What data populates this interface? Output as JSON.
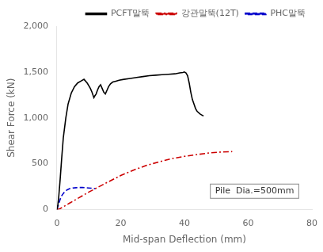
{
  "chart_data": {
    "type": "line",
    "xlabel": "Mid-span Deflection (mm)",
    "ylabel": "Shear Force (kN)",
    "xlim": [
      0,
      80
    ],
    "ylim": [
      0,
      2000
    ],
    "xticks": [
      0,
      20,
      40,
      60,
      80
    ],
    "yticks": [
      0,
      500,
      {
        "value": 1000,
        "label": "1,000"
      },
      {
        "value": 1500,
        "label": "1,500"
      },
      {
        "value": 2000,
        "label": "2,000"
      }
    ],
    "annotation": "Pile  Dia.=500mm",
    "grid": false,
    "legend": "upper right",
    "series": [
      {
        "name": "PCFT말뚝",
        "color": "#000000",
        "line_style": "solid",
        "x": [
          0.0,
          0.3,
          0.6,
          1.0,
          1.5,
          2.0,
          2.8,
          3.5,
          4.5,
          5.5,
          6.5,
          7.5,
          8.5,
          9.5,
          10.0,
          10.5,
          11.0,
          11.3,
          11.6,
          11.9,
          12.3,
          12.7,
          13.2,
          13.7,
          14.2,
          14.7,
          15.2,
          15.7,
          16.2,
          16.8,
          17.5,
          18.5,
          19.5,
          21.0,
          23.0,
          25.0,
          27.0,
          29.0,
          31.0,
          33.0,
          35.0,
          37.0,
          38.5,
          39.5,
          40.0,
          40.5,
          41.0,
          41.5,
          42.0,
          42.5,
          43.0,
          43.5,
          44.0,
          45.0,
          46.0
        ],
        "values": [
          0,
          50,
          150,
          320,
          560,
          780,
          1000,
          1150,
          1270,
          1340,
          1380,
          1400,
          1420,
          1380,
          1350,
          1320,
          1280,
          1250,
          1220,
          1240,
          1260,
          1300,
          1340,
          1360,
          1320,
          1280,
          1260,
          1300,
          1340,
          1370,
          1390,
          1400,
          1410,
          1420,
          1430,
          1440,
          1450,
          1460,
          1465,
          1470,
          1475,
          1480,
          1490,
          1495,
          1500,
          1490,
          1460,
          1380,
          1280,
          1200,
          1150,
          1100,
          1070,
          1040,
          1020
        ]
      },
      {
        "name": "강관말뚝(12T)",
        "color": "#cc0000",
        "line_style": "dashdot",
        "x": [
          0,
          1,
          2,
          4,
          6,
          8,
          10,
          13,
          16,
          20,
          24,
          28,
          32,
          36,
          40,
          44,
          48,
          52,
          55
        ],
        "values": [
          0,
          10,
          30,
          70,
          110,
          150,
          190,
          245,
          300,
          370,
          430,
          480,
          520,
          555,
          580,
          600,
          618,
          628,
          632
        ]
      },
      {
        "name": "PHC말뚝",
        "color": "#0000cc",
        "line_style": "dashed",
        "x": [
          0.0,
          0.5,
          1.0,
          1.5,
          2.0,
          2.5,
          3.0,
          3.5,
          4.0,
          5.0,
          6.0,
          7.0,
          8.0,
          9.0,
          10.0,
          11.0,
          12.0
        ],
        "values": [
          0,
          55,
          110,
          150,
          175,
          195,
          210,
          220,
          228,
          235,
          238,
          240,
          240,
          238,
          235,
          232,
          228
        ]
      }
    ]
  }
}
